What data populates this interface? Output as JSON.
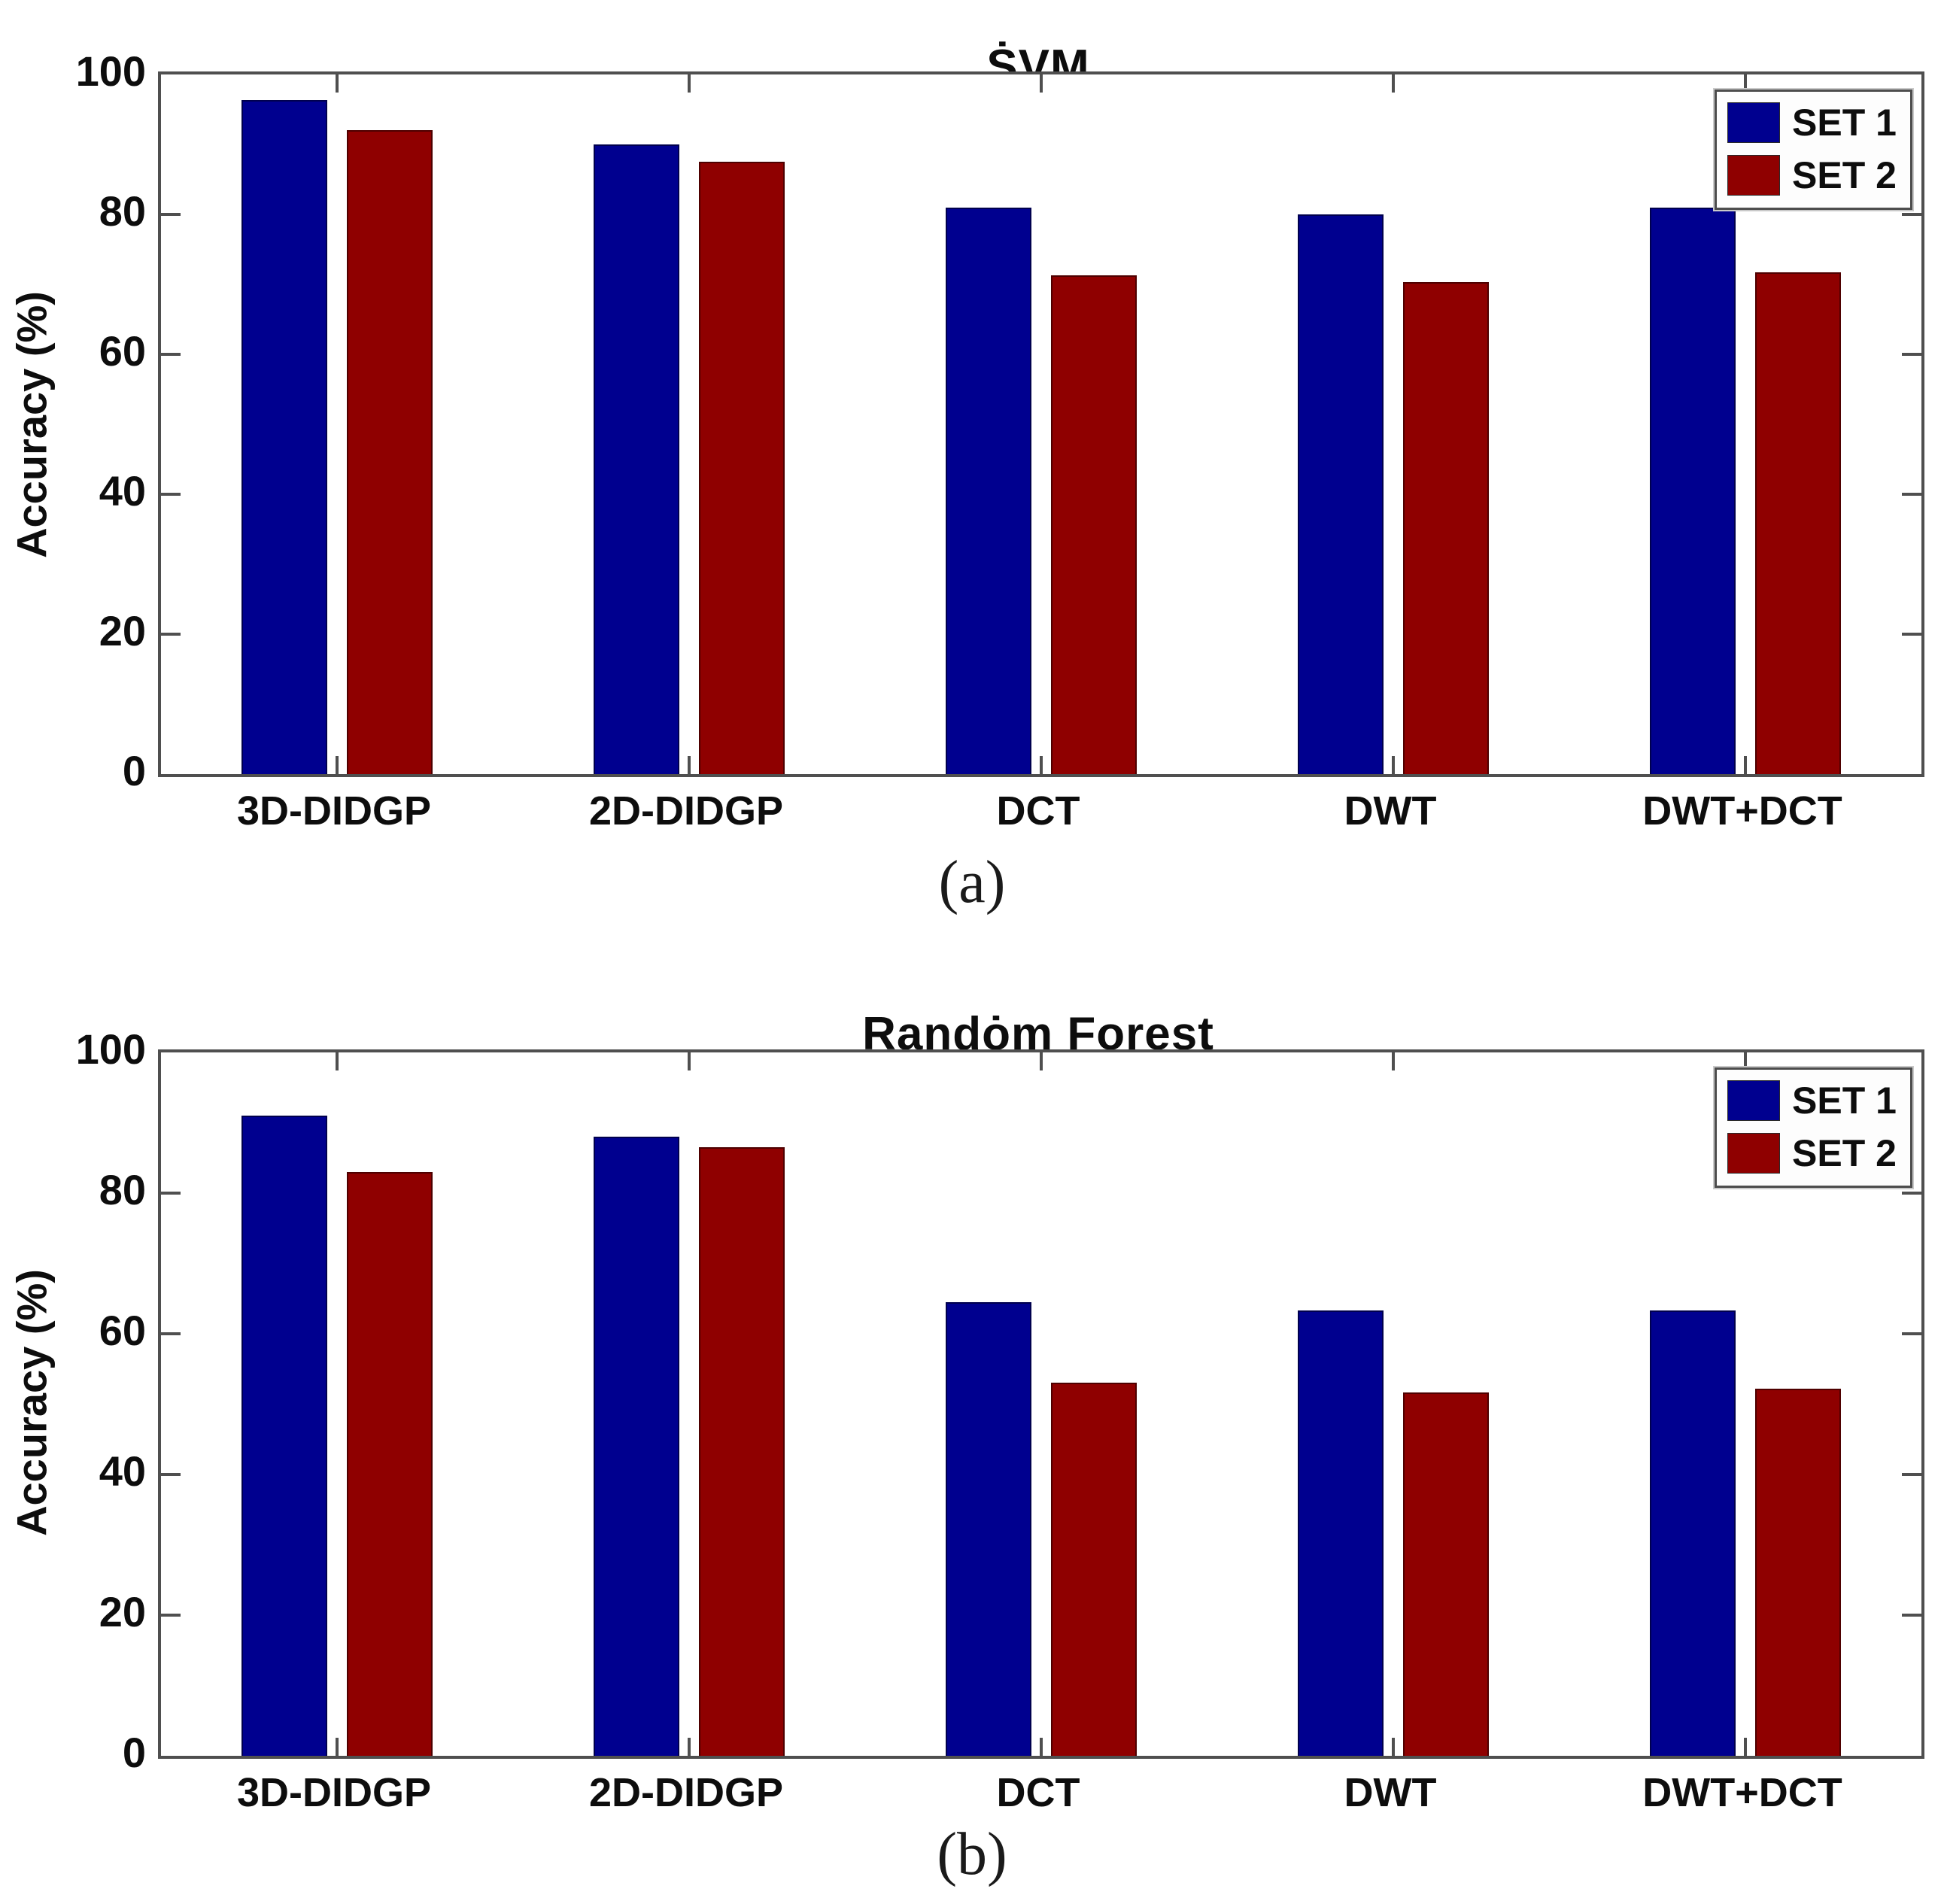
{
  "colors": {
    "set1": "#00008f",
    "set2": "#8f0000",
    "axis": "#4f4f4f",
    "background": "#ffffff",
    "text": "#0d0d0d"
  },
  "chart_data": [
    {
      "type": "bar",
      "title": "ṠVM",
      "caption": "(a)",
      "xlabel": "",
      "ylabel": "Accuracy (%)",
      "ylim": [
        0,
        100
      ],
      "yticks": [
        0,
        20,
        40,
        60,
        80,
        100
      ],
      "grid": false,
      "legend_position": "top-right",
      "categories": [
        "3D-DIDGP",
        "2D-DIDGP",
        "DCT",
        "DWT",
        "DWT+DCT"
      ],
      "series": [
        {
          "name": "SET 1",
          "color": "#00008f",
          "values": [
            96.3,
            90,
            81,
            80,
            81
          ]
        },
        {
          "name": "SET 2",
          "color": "#8f0000",
          "values": [
            92,
            87.5,
            71.3,
            70.3,
            71.7
          ]
        }
      ]
    },
    {
      "type": "bar",
      "title": "Randȯm Forest",
      "caption": "(b)",
      "xlabel": "",
      "ylabel": "Accuracy (%)",
      "ylim": [
        0,
        100
      ],
      "yticks": [
        0,
        20,
        40,
        60,
        80,
        100
      ],
      "grid": false,
      "legend_position": "top-right",
      "categories": [
        "3D-DIDGP",
        "2D-DIDGP",
        "DCT",
        "DWT",
        "DWT+DCT"
      ],
      "series": [
        {
          "name": "SET 1",
          "color": "#00008f",
          "values": [
            91,
            88,
            64.5,
            63.3,
            63.3
          ]
        },
        {
          "name": "SET 2",
          "color": "#8f0000",
          "values": [
            83,
            86.5,
            53,
            51.7,
            52.2
          ]
        }
      ]
    }
  ]
}
